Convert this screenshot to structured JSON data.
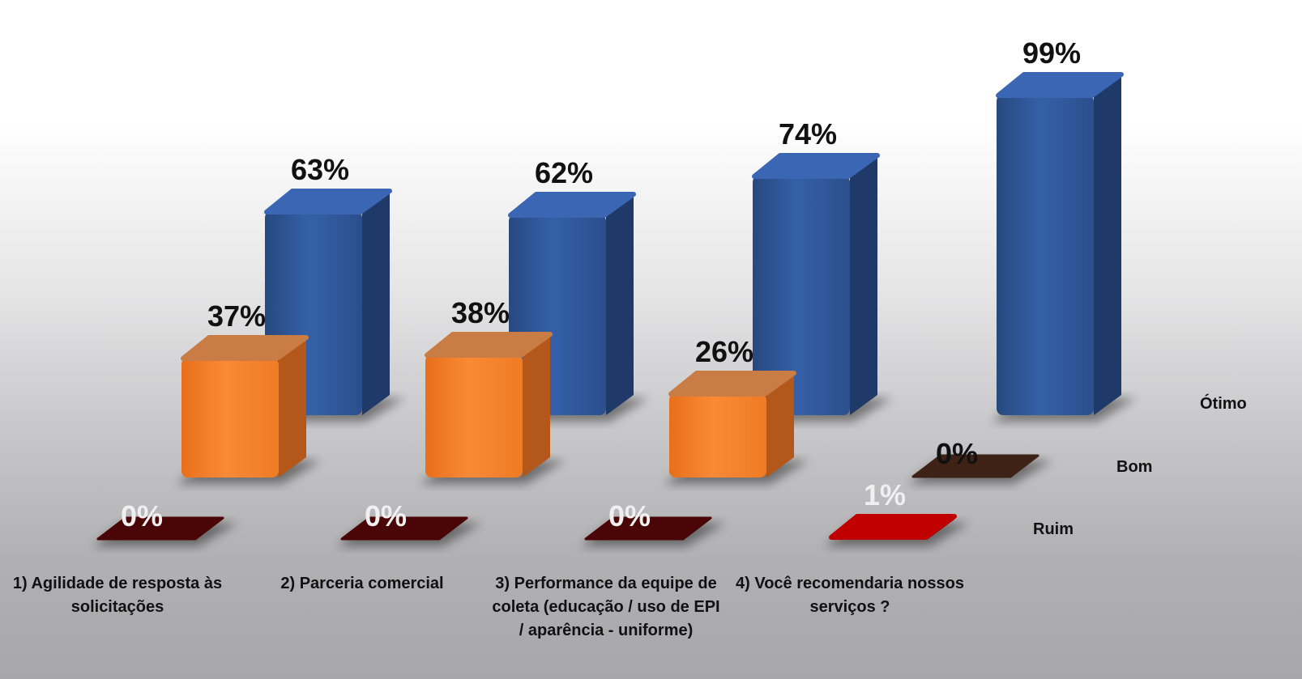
{
  "chart_data": {
    "type": "bar",
    "categories": [
      "1) Agilidade de resposta às solicitações",
      "2) Parceria comercial",
      "3) Performance da equipe de coleta (educação / uso de EPI / aparência - uniforme)",
      "4) Você recomendaria nossos serviços ?"
    ],
    "series": [
      {
        "name": "Ótimo",
        "values": [
          63,
          62,
          74,
          99
        ],
        "labels": [
          "63%",
          "62%",
          "74%",
          "99%"
        ],
        "color": "#2f5597"
      },
      {
        "name": "Bom",
        "values": [
          37,
          38,
          26,
          0
        ],
        "labels": [
          "37%",
          "38%",
          "26%",
          "0%"
        ],
        "color": "#f07f2a"
      },
      {
        "name": "Ruim",
        "values": [
          0,
          0,
          0,
          1
        ],
        "labels": [
          "0%",
          "0%",
          "0%",
          "1%"
        ],
        "color": "#c00000"
      }
    ],
    "ylim": [
      0,
      100
    ],
    "style": "3d-depth",
    "grid": false,
    "legend": "row labels at right"
  }
}
